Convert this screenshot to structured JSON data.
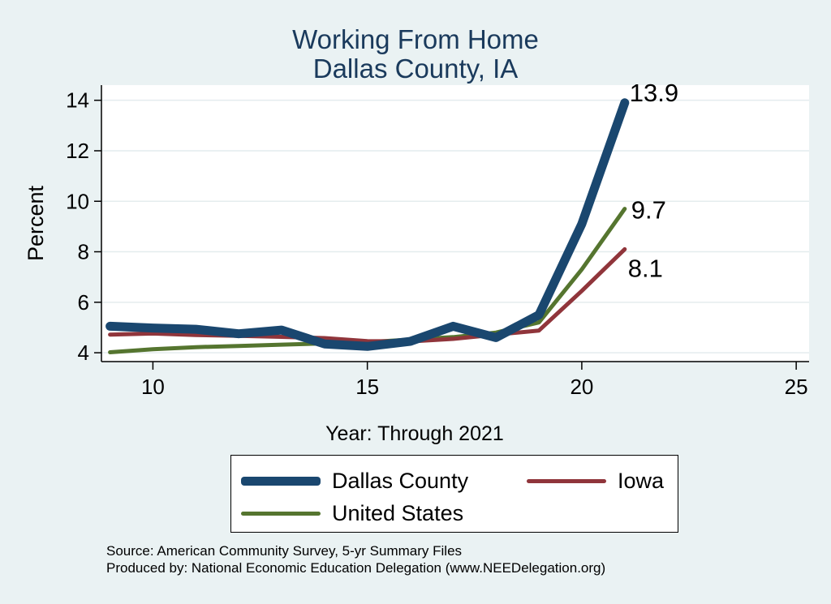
{
  "chart_data": {
    "type": "line",
    "title": "Working From Home",
    "subtitle": "Dallas County, IA",
    "xlabel": "Year: Through 2021",
    "ylabel": "Percent",
    "xlim": [
      8.8,
      25.3
    ],
    "ylim": [
      3.65,
      14.6
    ],
    "xticks": [
      10,
      15,
      20,
      25
    ],
    "yticks": [
      4,
      6,
      8,
      10,
      12,
      14
    ],
    "grid": true,
    "legend_position": "bottom",
    "series": [
      {
        "name": "Dallas County",
        "color": "#1a476f",
        "x": [
          9,
          10,
          11,
          12,
          13,
          14,
          15,
          16,
          17,
          18,
          19,
          20,
          21
        ],
        "y": [
          5.05,
          4.98,
          4.93,
          4.75,
          4.9,
          4.35,
          4.25,
          4.45,
          5.05,
          4.6,
          5.5,
          9.1,
          13.9
        ],
        "end_label": "13.9"
      },
      {
        "name": "Iowa",
        "color": "#90353b",
        "x": [
          9,
          10,
          11,
          12,
          13,
          14,
          15,
          16,
          17,
          18,
          19,
          20,
          21
        ],
        "y": [
          4.72,
          4.76,
          4.7,
          4.67,
          4.63,
          4.58,
          4.46,
          4.45,
          4.55,
          4.72,
          4.88,
          6.45,
          8.1
        ],
        "end_label": "8.1"
      },
      {
        "name": "United States",
        "color": "#55752f",
        "x": [
          9,
          10,
          11,
          12,
          13,
          14,
          15,
          16,
          17,
          18,
          19,
          20,
          21
        ],
        "y": [
          4.02,
          4.14,
          4.22,
          4.27,
          4.32,
          4.37,
          4.42,
          4.52,
          4.62,
          4.8,
          5.2,
          7.3,
          9.7
        ],
        "end_label": "9.7"
      }
    ]
  },
  "footer": {
    "source": "Source: American Community Survey, 5-yr Summary Files",
    "produced": "Produced by: National Economic Education Delegation (www.NEEDelegation.org)"
  }
}
